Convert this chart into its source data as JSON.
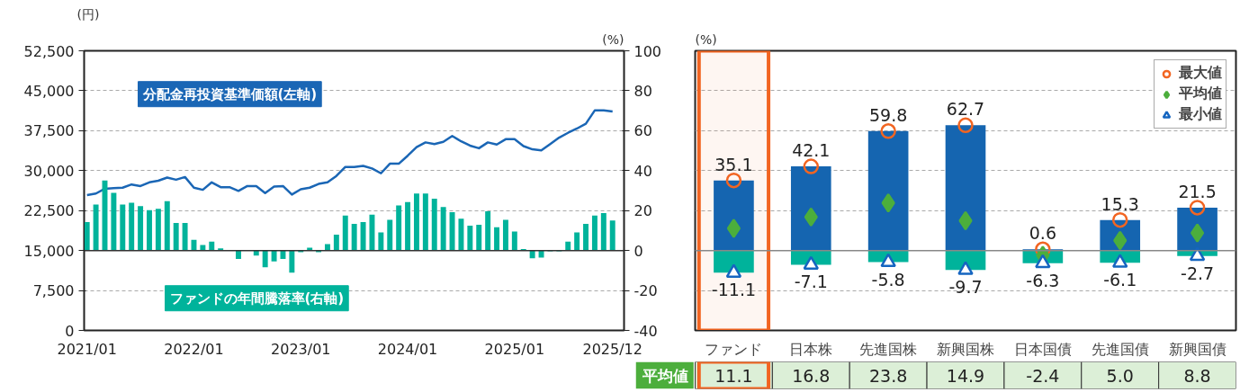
{
  "chart_data": [
    {
      "type": "line",
      "x": [
        "2021-01",
        "2021-02",
        "2021-03",
        "2021-04",
        "2021-05",
        "2021-06",
        "2021-07",
        "2021-08",
        "2021-09",
        "2021-10",
        "2021-11",
        "2021-12",
        "2022-01",
        "2022-02",
        "2022-03",
        "2022-04",
        "2022-05",
        "2022-06",
        "2022-07",
        "2022-08",
        "2022-09",
        "2022-10",
        "2022-11",
        "2022-12",
        "2023-01",
        "2023-02",
        "2023-03",
        "2023-04",
        "2023-05",
        "2023-06",
        "2023-07",
        "2023-08",
        "2023-09",
        "2023-10",
        "2023-11",
        "2023-12",
        "2024-01",
        "2024-02",
        "2024-03",
        "2024-04",
        "2024-05",
        "2024-06",
        "2024-07",
        "2024-08",
        "2024-09",
        "2024-10",
        "2024-11",
        "2024-12",
        "2025-01",
        "2025-02",
        "2025-03",
        "2025-04",
        "2025-05",
        "2025-06",
        "2025-07",
        "2025-08",
        "2025-09",
        "2025-10",
        "2025-11",
        "2025-12"
      ],
      "xlim": [
        "2020-12-22",
        "2026-01-10"
      ],
      "xticks": [
        {
          "value": "2021-01",
          "label": "2021/01"
        },
        {
          "value": "2022-01",
          "label": "2022/01"
        },
        {
          "value": "2023-01",
          "label": "2023/01"
        },
        {
          "value": "2024-01",
          "label": "2024/01"
        },
        {
          "value": "2025-01",
          "label": "2025/01"
        },
        {
          "value": "2025-12",
          "label": "2025/12"
        }
      ],
      "ylim": [
        0,
        52500
      ],
      "yticks": [
        0,
        {
          "value": 7500,
          "label": "7,500"
        },
        {
          "value": 15000,
          "label": "15,000"
        },
        {
          "value": 22500,
          "label": "22,500"
        },
        {
          "value": 30000,
          "label": "30,000"
        },
        {
          "value": 37500,
          "label": "37,500"
        },
        {
          "value": 45000,
          "label": "45,000"
        },
        {
          "value": 52500,
          "label": "52,500"
        }
      ],
      "y2lim": [
        -40,
        100
      ],
      "y2ticks": [
        -40,
        -20,
        0,
        20,
        40,
        60,
        80,
        100
      ],
      "ylabel": "(円)",
      "y2label": "(%)",
      "grid": "y",
      "series": [
        {
          "name": "分配金再投資基準価額(左軸)",
          "type": "line",
          "color": "#1a66b5",
          "values": [
            25400,
            25700,
            26600,
            26700,
            26800,
            27400,
            27100,
            27800,
            28100,
            28700,
            28300,
            28800,
            26800,
            26400,
            27800,
            26900,
            26900,
            26200,
            27100,
            27100,
            25800,
            27000,
            27100,
            25500,
            26500,
            26800,
            27500,
            27800,
            29000,
            30700,
            30700,
            30900,
            30400,
            29500,
            31300,
            31300,
            32800,
            34400,
            35300,
            35000,
            35400,
            36500,
            35500,
            34700,
            34200,
            35300,
            34900,
            35900,
            35900,
            34600,
            34000,
            33800,
            35000,
            36200,
            37100,
            37900,
            38800,
            41300,
            41300,
            41100
          ]
        },
        {
          "name": "ファンドの年間騰落率(右軸)",
          "type": "bar",
          "axis": "y2",
          "color": "#00b39b",
          "values": [
            14.2,
            23.0,
            35.1,
            28.9,
            23.0,
            23.9,
            22.2,
            20.2,
            20.9,
            24.7,
            13.8,
            13.8,
            5.3,
            2.8,
            4.5,
            1.1,
            0,
            -4.2,
            0,
            -2.5,
            -8.4,
            -5.5,
            -4.2,
            -11.1,
            -0.8,
            1.4,
            -0.8,
            3.2,
            7.9,
            17.5,
            13.3,
            14.2,
            18.0,
            9.1,
            15.4,
            22.6,
            24.3,
            28.5,
            28.5,
            26.0,
            21.8,
            19.2,
            15.9,
            12.5,
            12.9,
            19.7,
            11.7,
            15.4,
            9.5,
            0.7,
            -3.9,
            -3.5,
            -0.4,
            -0.4,
            4.5,
            9.1,
            13.3,
            17.5,
            18.8,
            15.0
          ]
        }
      ]
    },
    {
      "type": "bar",
      "categories": [
        "ファンド",
        "日本株",
        "先進国株",
        "新興国株",
        "日本国債",
        "先進国債",
        "新興国債"
      ],
      "ylim": [
        -40,
        100
      ],
      "yticks": [
        -40,
        -20,
        0,
        20,
        40,
        60,
        80,
        100
      ],
      "tick_labels": "x",
      "stacked": true,
      "ylabel": "(%)",
      "grid": "y",
      "legend": "top right",
      "bands": [
        {
          "axis": "x",
          "from": "ファンド",
          "to": "ファンド",
          "color": "#f26522"
        }
      ],
      "annotations": [
        "平均値"
      ],
      "series": [
        {
          "type": "bar",
          "color": "#1565b0",
          "values": [
            35.1,
            42.1,
            59.8,
            62.7,
            0.6,
            15.3,
            21.5
          ]
        },
        {
          "type": "bar",
          "color": "#00b39b",
          "values": [
            -11.1,
            -7.1,
            -5.8,
            -9.7,
            -6.3,
            -6.1,
            -2.7
          ]
        },
        {
          "name": "最大値",
          "type": "scatter",
          "marker": "circle",
          "color": "#f26522",
          "values": [
            35.1,
            42.1,
            59.8,
            62.7,
            0.6,
            15.3,
            21.5
          ],
          "value_labels": [
            "35.1",
            "42.1",
            "59.8",
            "62.7",
            "0.6",
            "15.3",
            "21.5"
          ]
        },
        {
          "name": "平均値",
          "type": "scatter",
          "marker": "diamond",
          "color": "#4cae3c",
          "values": [
            11.1,
            16.8,
            23.8,
            14.9,
            -2.4,
            5.0,
            8.8
          ],
          "value_labels": [
            "11.1",
            "16.8",
            "23.8",
            "14.9",
            "-2.4",
            "5.0",
            "8.8"
          ]
        },
        {
          "name": "最小値",
          "type": "scatter",
          "marker": "triangle",
          "color": "#1565c0",
          "values": [
            -11.1,
            -7.1,
            -5.8,
            -9.7,
            -6.3,
            -6.1,
            -2.7
          ],
          "value_labels": [
            "-11.1",
            "-7.1",
            "-5.8",
            "-9.7",
            "-6.3",
            "-6.1",
            "-2.7"
          ]
        }
      ]
    }
  ]
}
